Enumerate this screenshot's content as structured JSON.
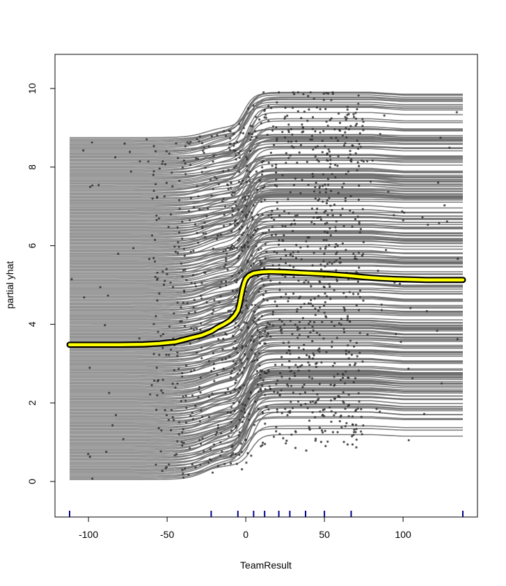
{
  "chart_data": {
    "type": "line",
    "title": "",
    "xlabel": "TeamResult",
    "ylabel": "partial yhat",
    "xlim": [
      -112,
      138
    ],
    "ylim": [
      -0.9,
      10.8
    ],
    "x_ticks": [
      -100,
      -50,
      0,
      50,
      100
    ],
    "x_tick_labels": [
      "-100",
      "-50",
      "0",
      "50",
      "100"
    ],
    "y_ticks": [
      0,
      2,
      4,
      6,
      8,
      10
    ],
    "y_tick_labels": [
      "0",
      "2",
      "4",
      "6",
      "8",
      "10"
    ],
    "grid": false,
    "legend": "none",
    "rug_x": [
      -112,
      -22,
      -5,
      5,
      12,
      21,
      28,
      38,
      50,
      67,
      138
    ],
    "ice_curves": {
      "count": "many",
      "color": "#6b6b6b",
      "point_color": "#333333",
      "y_range": [
        0.05,
        9.9
      ]
    },
    "series": [
      {
        "name": "",
        "role": "average partial dependence",
        "color": "#ffff00",
        "outline_color": "#000000",
        "x": [
          -112,
          -100,
          -80,
          -65,
          -55,
          -45,
          -35,
          -28,
          -22,
          -18,
          -14,
          -10,
          -7,
          -5,
          -4,
          -3,
          -2,
          -1,
          0,
          2,
          5,
          10,
          15,
          25,
          35,
          45,
          55,
          65,
          75,
          85,
          95,
          105,
          115,
          125,
          138
        ],
        "y": [
          3.48,
          3.48,
          3.48,
          3.49,
          3.51,
          3.55,
          3.65,
          3.72,
          3.82,
          3.92,
          4.0,
          4.1,
          4.22,
          4.35,
          4.5,
          4.7,
          4.9,
          5.05,
          5.15,
          5.24,
          5.3,
          5.33,
          5.34,
          5.33,
          5.31,
          5.29,
          5.27,
          5.24,
          5.2,
          5.17,
          5.15,
          5.14,
          5.13,
          5.13,
          5.13
        ]
      }
    ]
  }
}
